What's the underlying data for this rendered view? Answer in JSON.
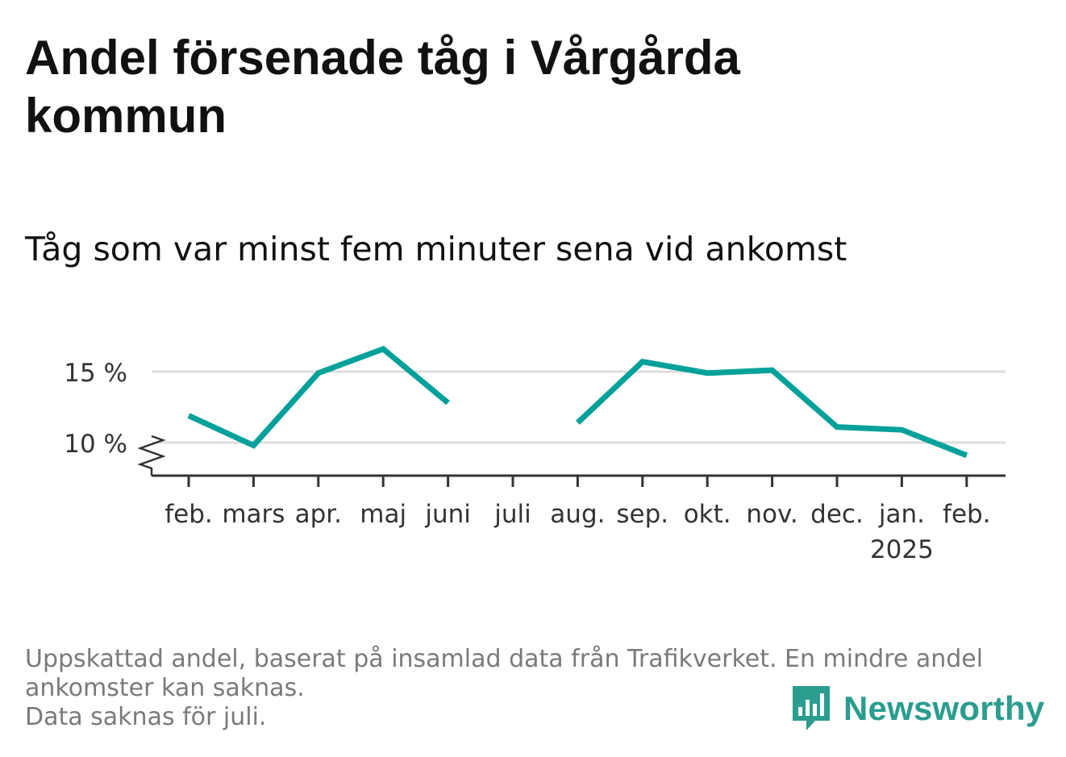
{
  "title": "Andel försenade tåg i Vårgårda kommun",
  "subtitle": "Tåg som var minst fem minuter sena vid ankomst",
  "footnote": {
    "lines": [
      "Uppskattad andel, baserat på insamlad data från Trafikverket. En mindre andel",
      "ankomster kan saknas.",
      "Data saknas för juli."
    ]
  },
  "brand": {
    "name": "Newsworthy",
    "icon": "newsworthy-logo-icon",
    "color": "#2a9d8f"
  },
  "chart_data": {
    "type": "line",
    "categories": [
      "feb.",
      "mars",
      "apr.",
      "maj",
      "juni",
      "juli",
      "aug.",
      "sep.",
      "okt.",
      "nov.",
      "dec.",
      "jan.",
      "feb."
    ],
    "year_label": {
      "category_index": 11,
      "text": "2025"
    },
    "series": [
      {
        "values": [
          11.9,
          9.8,
          14.9,
          16.6,
          12.8,
          null,
          11.4,
          15.7,
          14.9,
          15.1,
          11.1,
          10.9,
          9.1
        ],
        "color": "#00a19a"
      }
    ],
    "y_ticks": [
      {
        "value": 10,
        "label": "10 %"
      },
      {
        "value": 15,
        "label": "15 %"
      }
    ],
    "ylim": [
      7.8,
      17.5
    ],
    "y_axis_broken": true,
    "grid": "horizontal",
    "colors": {
      "line": "#00a19a",
      "grid": "#dddddd",
      "axis": "#333333",
      "tick_label": "#333333"
    }
  }
}
